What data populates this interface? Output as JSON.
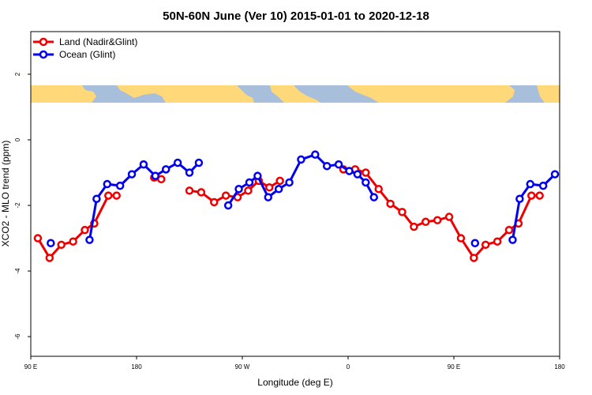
{
  "chart_data": {
    "type": "line",
    "title": "50N-60N June (Ver 10)   2015-01-01 to 2020-12-18",
    "xlabel": "Longitude (deg E)",
    "ylabel": "XCO2 - MLO trend (ppm)",
    "x_ticks": [
      {
        "value": 90,
        "label": "90 E"
      },
      {
        "value": 180,
        "label": "180"
      },
      {
        "value": 270,
        "label": "90 W"
      },
      {
        "value": 360,
        "label": "0"
      },
      {
        "value": 450,
        "label": "90 E"
      },
      {
        "value": 540,
        "label": "180"
      }
    ],
    "y_ticks": [
      {
        "value": 2,
        "label": "2"
      },
      {
        "value": 0,
        "label": "0"
      },
      {
        "value": -2,
        "label": "-2"
      },
      {
        "value": -4,
        "label": "-4"
      },
      {
        "value": -6,
        "label": "-6"
      }
    ],
    "xlim": [
      90,
      540
    ],
    "ylim": [
      -6.6,
      3.3
    ],
    "legend_position": "top-left",
    "map_strip": {
      "y_range": [
        1.2,
        1.7
      ],
      "land_color": "#ffd87a",
      "ocean_color": "#a8bfdc"
    },
    "series": [
      {
        "name": "Land (Nadir&Glint)",
        "color": "#ee0000",
        "segments": [
          [
            [
              96,
              -3.0
            ],
            [
              106,
              -3.6
            ],
            [
              116,
              -3.2
            ],
            [
              126,
              -3.1
            ],
            [
              136,
              -2.75
            ],
            [
              144,
              -2.55
            ],
            [
              156,
              -1.7
            ],
            [
              163,
              -1.7
            ]
          ],
          [
            [
              195,
              -1.15
            ],
            [
              201,
              -1.2
            ]
          ],
          [
            [
              225,
              -1.55
            ],
            [
              235,
              -1.6
            ],
            [
              246,
              -1.9
            ],
            [
              256,
              -1.7
            ],
            [
              266,
              -1.75
            ],
            [
              275,
              -1.55
            ],
            [
              284,
              -1.25
            ],
            [
              293,
              -1.45
            ],
            [
              302,
              -1.25
            ]
          ],
          [
            [
              356,
              -0.9
            ],
            [
              366,
              -0.9
            ],
            [
              375,
              -1.0
            ],
            [
              386,
              -1.5
            ],
            [
              396,
              -1.95
            ],
            [
              406,
              -2.2
            ],
            [
              416,
              -2.65
            ],
            [
              426,
              -2.5
            ],
            [
              436,
              -2.45
            ],
            [
              446,
              -2.35
            ],
            [
              456,
              -3.0
            ],
            [
              467,
              -3.6
            ],
            [
              477,
              -3.2
            ],
            [
              487,
              -3.1
            ],
            [
              497,
              -2.75
            ],
            [
              505,
              -2.55
            ],
            [
              516,
              -1.7
            ],
            [
              523,
              -1.7
            ]
          ]
        ]
      },
      {
        "name": "Ocean (Glint)",
        "color": "#0000ee",
        "segments": [
          [
            [
              107,
              -3.15
            ]
          ],
          [
            [
              140,
              -3.05
            ],
            [
              146,
              -1.8
            ],
            [
              155,
              -1.35
            ],
            [
              166,
              -1.4
            ],
            [
              176,
              -1.05
            ],
            [
              186,
              -0.75
            ],
            [
              196,
              -1.1
            ],
            [
              205,
              -0.9
            ],
            [
              215,
              -0.7
            ],
            [
              225,
              -1.0
            ],
            [
              233,
              -0.7
            ]
          ],
          [
            [
              258,
              -2.0
            ],
            [
              267,
              -1.5
            ],
            [
              276,
              -1.3
            ],
            [
              283,
              -1.1
            ],
            [
              292,
              -1.75
            ],
            [
              301,
              -1.5
            ],
            [
              310,
              -1.3
            ],
            [
              320,
              -0.6
            ],
            [
              332,
              -0.45
            ],
            [
              342,
              -0.8
            ],
            [
              352,
              -0.75
            ],
            [
              361,
              -0.95
            ],
            [
              368,
              -1.05
            ],
            [
              375,
              -1.3
            ],
            [
              382,
              -1.75
            ]
          ],
          [
            [
              468,
              -3.15
            ]
          ],
          [
            [
              500,
              -3.05
            ],
            [
              506,
              -1.8
            ],
            [
              515,
              -1.35
            ],
            [
              526,
              -1.4
            ],
            [
              536,
              -1.05
            ]
          ]
        ]
      }
    ]
  }
}
